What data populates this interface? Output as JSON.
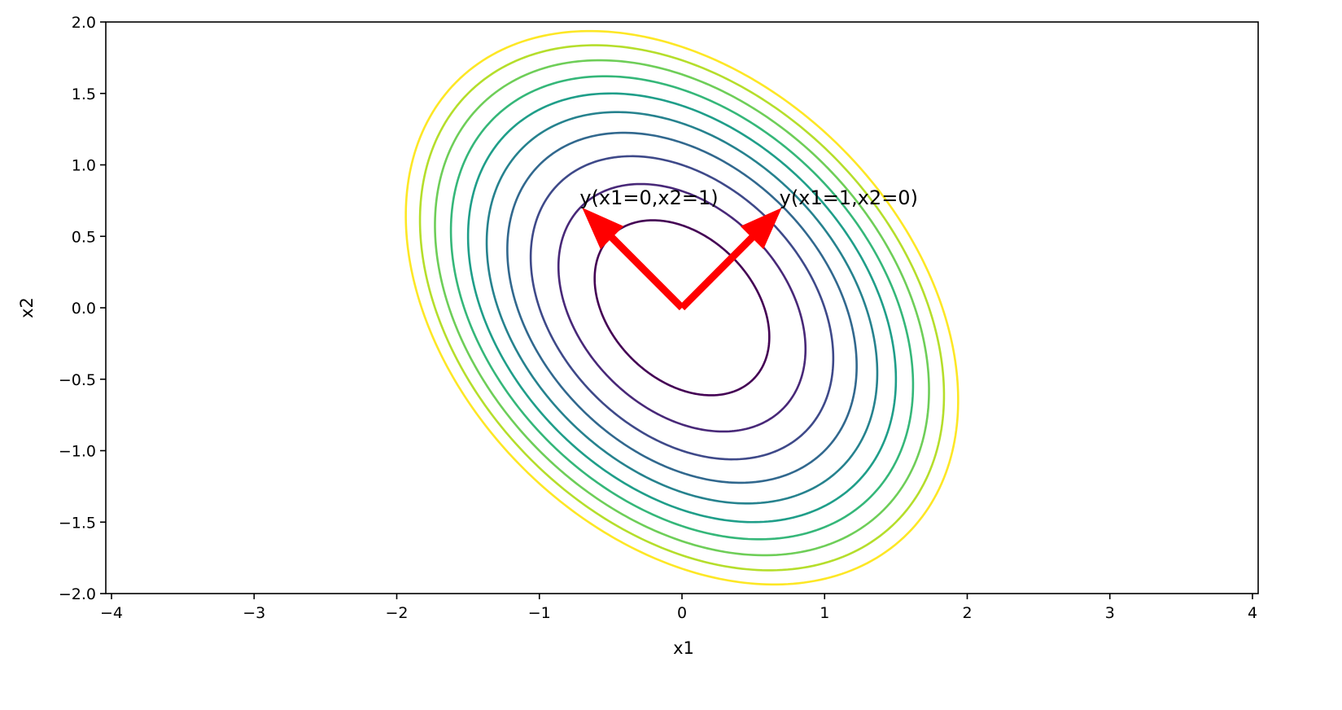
{
  "chart_data": {
    "type": "contour",
    "xlabel": "x1",
    "ylabel": "x2",
    "xlim": [
      -4.04,
      4.04
    ],
    "ylim": [
      -2.0,
      2.0
    ],
    "xticks": [
      {
        "value": -4,
        "label": "−4"
      },
      {
        "value": -3,
        "label": "−3"
      },
      {
        "value": -2,
        "label": "−2"
      },
      {
        "value": -1,
        "label": "−1"
      },
      0,
      1,
      2,
      3,
      4
    ],
    "yticks": [
      {
        "value": -2.0,
        "label": "−2.0"
      },
      {
        "value": -1.5,
        "label": "−1.5"
      },
      {
        "value": -1.0,
        "label": "−1.0"
      },
      {
        "value": -0.5,
        "label": "−0.5"
      },
      {
        "value": 0.0,
        "label": "0.0"
      },
      {
        "value": 0.5,
        "label": "0.5"
      },
      {
        "value": 1.0,
        "label": "1.0"
      },
      {
        "value": 1.5,
        "label": "1.5"
      },
      {
        "value": 2.0,
        "label": "2.0"
      }
    ],
    "quadratic_form": [
      [
        3,
        1
      ],
      [
        1,
        3
      ]
    ],
    "levels": [
      1,
      2,
      3,
      4,
      5,
      6,
      7,
      8,
      9,
      10
    ],
    "colors": [
      "#440154",
      "#482878",
      "#3e4989",
      "#31688e",
      "#26828e",
      "#1f9e89",
      "#35b779",
      "#6ece58",
      "#b5de2b",
      "#fde725"
    ],
    "arrows": [
      {
        "from": [
          0,
          0
        ],
        "to": [
          -0.7,
          0.7
        ],
        "label": "y(x1=0,x2=1)",
        "color": "#ff0000"
      },
      {
        "from": [
          0,
          0
        ],
        "to": [
          0.7,
          0.7
        ],
        "label": "y(x1=1,x2=0)",
        "color": "#ff0000"
      }
    ]
  }
}
